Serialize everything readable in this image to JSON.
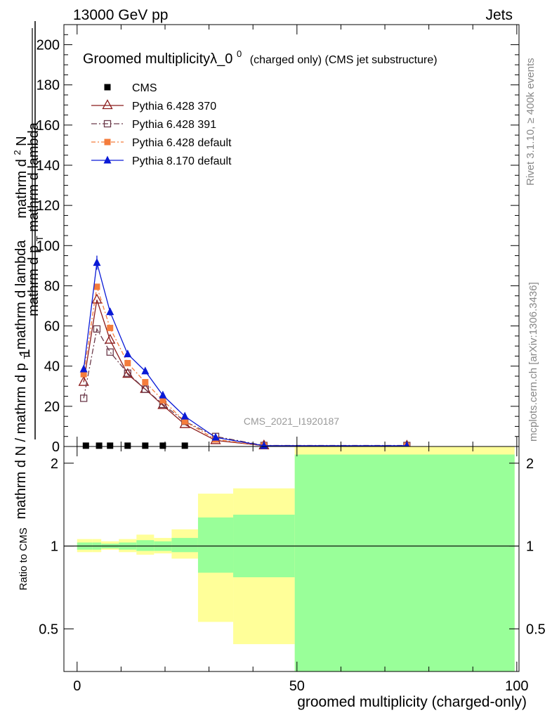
{
  "header": {
    "left": "13000 GeV pp",
    "right": "Jets"
  },
  "side_labels": {
    "top": "Rivet 3.1.10, ≥ 400k events",
    "bottom": "mcplots.cern.ch [arXiv:1306.3436]"
  },
  "watermark": "CMS_2021_I1920187",
  "chart_data": [
    {
      "type": "line",
      "title": "Groomed multiplicityλ_0",
      "title_sup": "0",
      "title_suffix": "(charged only) (CMS jet substructure)",
      "ylabel": {
        "numerator": "1",
        "den_line1": "mathrm d N / mathrm d p",
        "den_sub": "T",
        "den_line2": "mathrm d lambda",
        "num_line1": "mathrm d",
        "num_sup": "2",
        "num_line2": "N",
        "mid": "mathrm d p",
        "mid_sub": "T",
        "mid2": "mathrm d lambda"
      },
      "xlim": [
        -3,
        100.5
      ],
      "ylim": [
        0,
        210
      ],
      "yticks": [
        0,
        20,
        40,
        60,
        80,
        100,
        120,
        140,
        160,
        180,
        200
      ],
      "yticklabels": [
        "0",
        "20",
        "40",
        "60",
        "80",
        "100",
        "120",
        "140",
        "160",
        "180",
        "200"
      ],
      "legend_placement": "top-left",
      "series": [
        {
          "name": "CMS",
          "color": "#000000",
          "marker": "filled-square",
          "x": [
            2,
            5,
            7.5,
            11.5,
            15.5,
            19.5,
            24.5
          ],
          "y": [
            0.4,
            0.4,
            0.4,
            0.4,
            0.4,
            0.4,
            0.4
          ]
        },
        {
          "name": "Pythia 6.428 370",
          "color": "#8b1a1a",
          "marker": "open-triangle",
          "dash": "",
          "x": [
            1.5,
            4.5,
            7.5,
            11.5,
            15.5,
            19.5,
            24.5,
            31.5,
            42.5,
            75
          ],
          "y": [
            32,
            73,
            53,
            36,
            28.5,
            20.5,
            11,
            3,
            0.4,
            0.3
          ]
        },
        {
          "name": "Pythia 6.428 391",
          "color": "#6b3a4a",
          "marker": "open-square",
          "dash": "8,3,2,3",
          "x": [
            1.5,
            4.5,
            7.5,
            11.5,
            15.5,
            19.5,
            24.5,
            31.5,
            42.5,
            75
          ],
          "y": [
            24,
            58.5,
            47,
            36.5,
            28.5,
            21,
            12.5,
            5,
            0.5,
            0.5
          ]
        },
        {
          "name": "Pythia 6.428 default",
          "color": "#f47c3c",
          "marker": "filled-square",
          "dash": "6,3,2,3",
          "x": [
            1.5,
            4.5,
            7.5,
            11.5,
            15.5,
            19.5,
            24.5,
            31.5,
            42.5,
            75
          ],
          "y": [
            36,
            79.5,
            59,
            41.5,
            32,
            23,
            12.5,
            3.5,
            0.4,
            0.3
          ]
        },
        {
          "name": "Pythia 8.170 default",
          "color": "#0a1ad6",
          "marker": "filled-triangle",
          "dash": "",
          "x": [
            1.5,
            4.5,
            7.5,
            11.5,
            15.5,
            19.5,
            24.5,
            31.5,
            42.5,
            75
          ],
          "y": [
            38.5,
            91.5,
            67,
            46,
            37.5,
            25.5,
            15,
            4.5,
            0.4,
            0.4
          ],
          "yerr": [
            1.5,
            3.5,
            2,
            1.5,
            1.2,
            1,
            0.8,
            0.4,
            0.2,
            0.2
          ]
        }
      ]
    },
    {
      "type": "area",
      "xlabel": "groomed multiplicity (charged-only)",
      "ylabel": "Ratio to CMS",
      "xlim": [
        -3,
        100.5
      ],
      "ylim": [
        0.35,
        2.3
      ],
      "yscale": "log",
      "xticks": [
        0,
        50,
        100
      ],
      "xticklabels": [
        "0",
        "50",
        "100"
      ],
      "yticks": [
        0.5,
        1,
        2
      ],
      "yticklabels": [
        "0.5",
        "1",
        "2"
      ],
      "reference_line": 1,
      "colors": {
        "outer_band": "#ffff99",
        "inner_band": "#99ff99"
      },
      "bands": [
        {
          "x0": 0,
          "x1": 3.5,
          "outer": [
            0.95,
            1.06
          ],
          "inner": [
            0.97,
            1.03
          ]
        },
        {
          "x0": 3.5,
          "x1": 5.5,
          "outer": [
            0.95,
            1.06
          ],
          "inner": [
            0.97,
            1.03
          ]
        },
        {
          "x0": 5.5,
          "x1": 9.5,
          "outer": [
            0.97,
            1.04
          ],
          "inner": [
            0.98,
            1.02
          ]
        },
        {
          "x0": 9.5,
          "x1": 13.5,
          "outer": [
            0.95,
            1.06
          ],
          "inner": [
            0.97,
            1.03
          ]
        },
        {
          "x0": 13.5,
          "x1": 17.5,
          "outer": [
            0.93,
            1.1
          ],
          "inner": [
            0.96,
            1.05
          ]
        },
        {
          "x0": 17.5,
          "x1": 21.5,
          "outer": [
            0.94,
            1.07
          ],
          "inner": [
            0.96,
            1.04
          ]
        },
        {
          "x0": 21.5,
          "x1": 27.5,
          "outer": [
            0.9,
            1.15
          ],
          "inner": [
            0.95,
            1.07
          ]
        },
        {
          "x0": 27.5,
          "x1": 35.5,
          "outer": [
            0.53,
            1.55
          ],
          "inner": [
            0.8,
            1.27
          ]
        },
        {
          "x0": 35.5,
          "x1": 49.5,
          "outer": [
            0.44,
            1.62
          ],
          "inner": [
            0.77,
            1.3
          ]
        },
        {
          "x0": 49.5,
          "x1": 99.5,
          "outer": [
            0.35,
            2.3
          ],
          "inner": [
            0.35,
            2.15
          ]
        }
      ]
    }
  ]
}
